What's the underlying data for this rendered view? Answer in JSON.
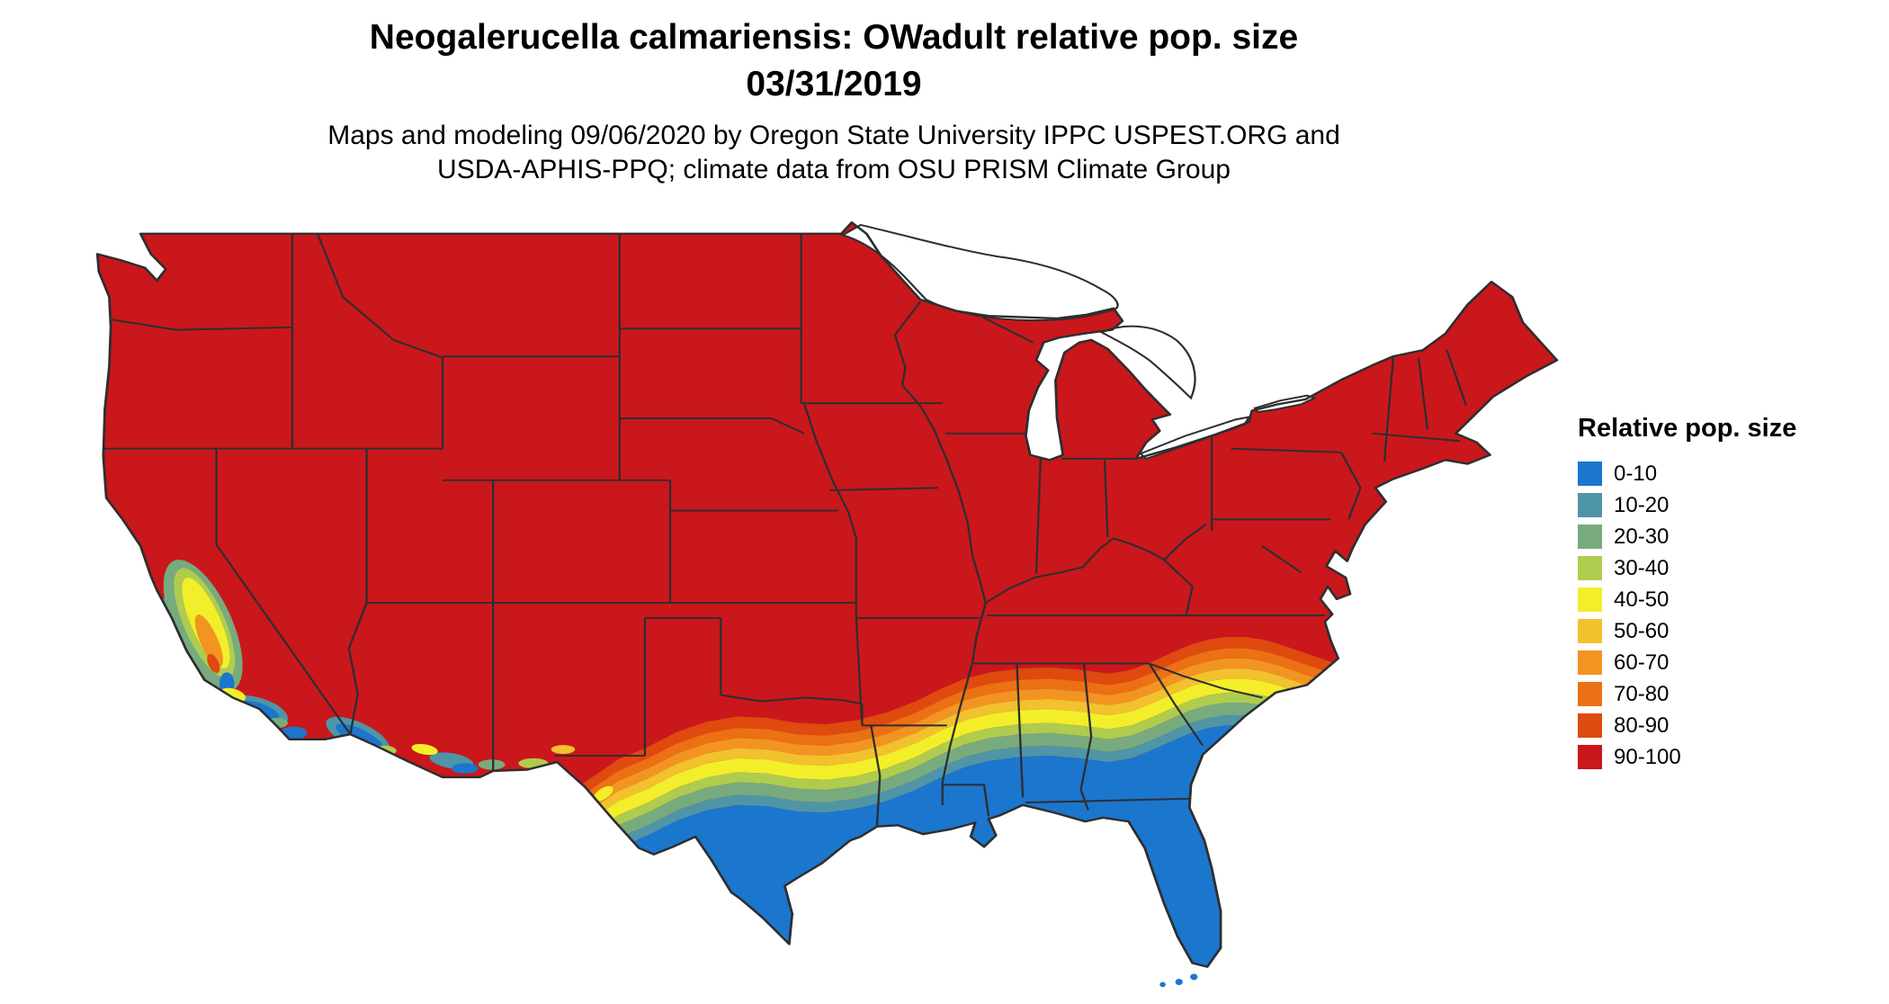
{
  "header": {
    "title": "Neogalerucella calmariensis: OWadult relative pop. size",
    "date": "03/31/2019",
    "attribution_line1": "Maps and modeling 09/06/2020 by Oregon State University IPPC USPEST.ORG and",
    "attribution_line2": "USDA-APHIS-PPQ; climate data from OSU PRISM Climate Group"
  },
  "legend": {
    "title": "Relative pop. size",
    "items": [
      {
        "label": "0-10",
        "color": "#1B76CE"
      },
      {
        "label": "10-20",
        "color": "#4F95A8"
      },
      {
        "label": "20-30",
        "color": "#77AB7E"
      },
      {
        "label": "30-40",
        "color": "#AFCC4F"
      },
      {
        "label": "40-50",
        "color": "#F2EF2A"
      },
      {
        "label": "50-60",
        "color": "#F2C12E"
      },
      {
        "label": "60-70",
        "color": "#F29422"
      },
      {
        "label": "70-80",
        "color": "#EC7014"
      },
      {
        "label": "80-90",
        "color": "#DF4A0F"
      },
      {
        "label": "90-100",
        "color": "#CA171C"
      }
    ]
  },
  "map": {
    "type": "choropleth-raster",
    "region": "contiguous United States",
    "pattern": "90-100 (red) across the northern and central US; graded bands from 80-90 down to 0-10 (blue) across southern Texas, the Gulf Coast, Florida and the south Atlantic coastal plain; low-value patches in California's Central Valley, coastal southern California and the Arizona/New Mexico desert southwest"
  }
}
